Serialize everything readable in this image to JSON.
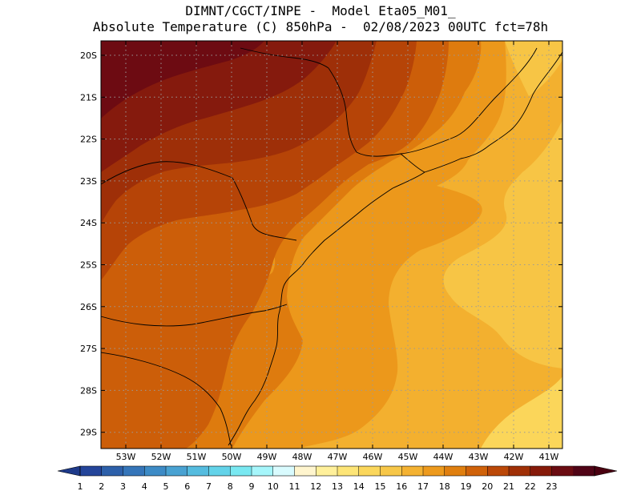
{
  "title_line1": "DIMNT/CGCT/INPE -  Model Eta05_M01_",
  "title_line2": "Absolute Temperature (C) 850hPa -  02/08/2023 00UTC fct=78h",
  "lat_labels": [
    "20S",
    "21S",
    "22S",
    "23S",
    "24S",
    "25S",
    "26S",
    "27S",
    "28S",
    "29S"
  ],
  "lon_labels": [
    "53W",
    "52W",
    "51W",
    "50W",
    "49W",
    "48W",
    "47W",
    "46W",
    "45W",
    "44W",
    "43W",
    "42W",
    "41W"
  ],
  "colorbar": {
    "labels": [
      "1",
      "2",
      "3",
      "4",
      "5",
      "6",
      "7",
      "8",
      "9",
      "10",
      "11",
      "12",
      "13",
      "14",
      "15",
      "16",
      "17",
      "18",
      "19",
      "20",
      "21",
      "22",
      "23"
    ],
    "colors": [
      "#24459a",
      "#2d60aa",
      "#3575b9",
      "#3d8bc6",
      "#49a2d2",
      "#55bcdf",
      "#63d3e9",
      "#79e8f1",
      "#a6f6fb",
      "#d9fbfe",
      "#fff5ce",
      "#fff09b",
      "#fde577",
      "#fbd75c",
      "#f7c748",
      "#f4b232",
      "#ed9a1d",
      "#e07f0f",
      "#d0620a",
      "#bb4808",
      "#a03007",
      "#861a0a",
      "#6b0c12",
      "#500416"
    ],
    "low_color": "#1e3a8a",
    "high_color": "#4a0010"
  },
  "field_colors": {
    "t22": "#6d0b12",
    "t21": "#851a0d",
    "t20": "#9e2f08",
    "t19": "#b64407",
    "t18": "#cc5e09",
    "t17": "#de7b0e",
    "t16": "#ec981b",
    "t15": "#f3b02f",
    "t14": "#f7c545",
    "t13": "#fbd65a"
  }
}
